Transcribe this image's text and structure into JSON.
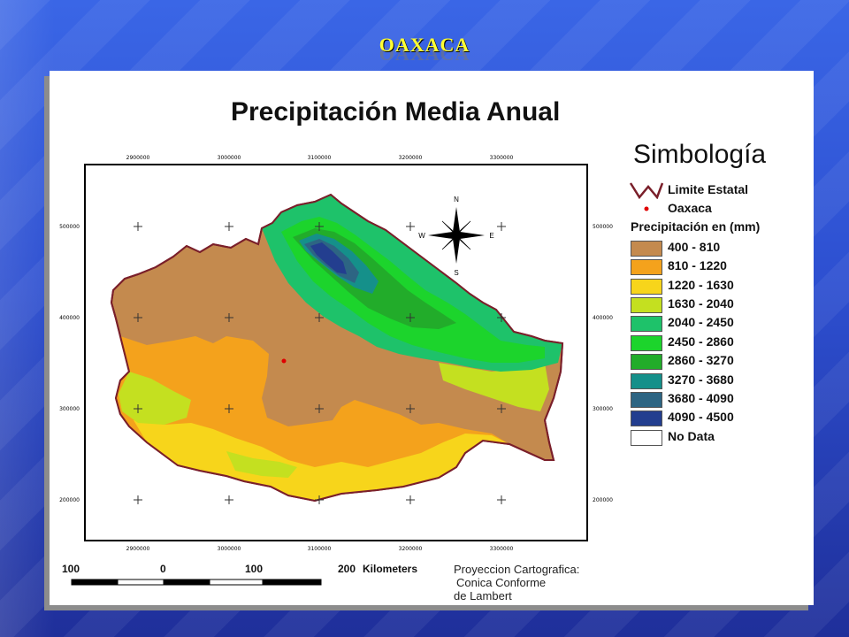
{
  "header": {
    "title": "OAXACA"
  },
  "map": {
    "title": "Precipitación Media Anual",
    "grid_x_labels": [
      "2900000",
      "3000000",
      "3100000",
      "3200000",
      "3300000"
    ],
    "grid_y_labels": [
      "500000",
      "400000",
      "300000",
      "200000"
    ]
  },
  "compass": {
    "n": "N",
    "s": "S",
    "e": "E",
    "w": "W"
  },
  "legend": {
    "title": "Simbología",
    "boundary_label": "Limite Estatal",
    "city_label": "Oaxaca",
    "precip_header": "Precipitación en (mm)",
    "classes": [
      {
        "label": "400 - 810",
        "color": "#c48a4e"
      },
      {
        "label": "810 - 1220",
        "color": "#f4a21c"
      },
      {
        "label": "1220 - 1630",
        "color": "#f7d51b"
      },
      {
        "label": "1630 - 2040",
        "color": "#c4e020"
      },
      {
        "label": "2040 - 2450",
        "color": "#1ec26a"
      },
      {
        "label": "2450 - 2860",
        "color": "#1cd42c"
      },
      {
        "label": "2860 - 3270",
        "color": "#22ac2a"
      },
      {
        "label": "3270 - 3680",
        "color": "#15908a"
      },
      {
        "label": "3680 - 4090",
        "color": "#2d6583"
      },
      {
        "label": "4090 - 4500",
        "color": "#233e8f"
      },
      {
        "label": "No Data",
        "color": "#ffffff"
      }
    ]
  },
  "scale": {
    "ticks": [
      "100",
      "0",
      "100",
      "200"
    ],
    "unit": "Kilometers"
  },
  "projection": {
    "line1": "Proyeccion Cartografica:",
    "line2": "Conica Conforme",
    "line3": "de Lambert"
  }
}
